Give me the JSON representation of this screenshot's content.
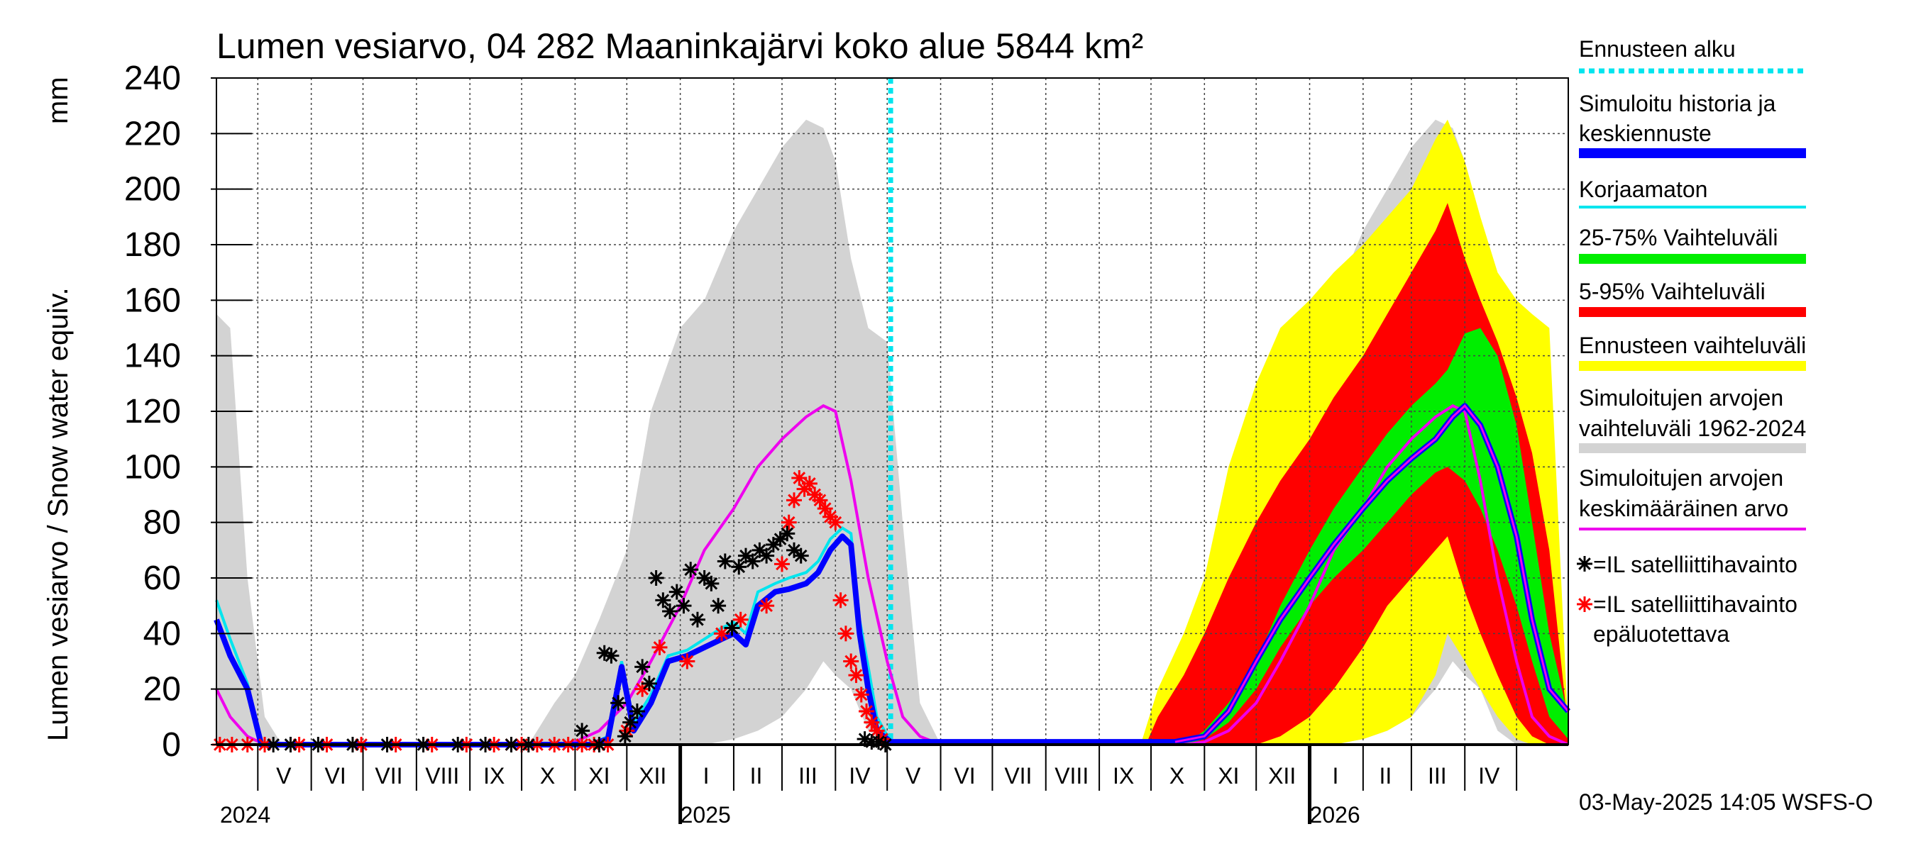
{
  "chart_data": {
    "type": "area",
    "title": "Lumen vesiarvo, 04 282 Maaninkajärvi koko alue 5844 km²",
    "ylabel": "Lumen vesiarvo / Snow water equiv.",
    "yunit": "mm",
    "ylim": [
      0,
      240
    ],
    "yticks": [
      0,
      20,
      40,
      60,
      80,
      100,
      120,
      140,
      160,
      180,
      200,
      220,
      240
    ],
    "xlim": [
      "2024-04-07",
      "2026-05-31"
    ],
    "grid": true,
    "legend_position": "right",
    "month_labels": [
      {
        "label": "V",
        "date": "2024-05-16"
      },
      {
        "label": "VI",
        "date": "2024-06-15"
      },
      {
        "label": "VII",
        "date": "2024-07-16"
      },
      {
        "label": "VIII",
        "date": "2024-08-16"
      },
      {
        "label": "IX",
        "date": "2024-09-15"
      },
      {
        "label": "X",
        "date": "2024-10-16"
      },
      {
        "label": "XI",
        "date": "2024-11-15"
      },
      {
        "label": "XII",
        "date": "2024-12-16"
      },
      {
        "label": "I",
        "date": "2025-01-16"
      },
      {
        "label": "II",
        "date": "2025-02-14"
      },
      {
        "label": "III",
        "date": "2025-03-16"
      },
      {
        "label": "IV",
        "date": "2025-04-15"
      },
      {
        "label": "V",
        "date": "2025-05-16"
      },
      {
        "label": "VI",
        "date": "2025-06-15"
      },
      {
        "label": "VII",
        "date": "2025-07-16"
      },
      {
        "label": "VIII",
        "date": "2025-08-16"
      },
      {
        "label": "IX",
        "date": "2025-09-15"
      },
      {
        "label": "X",
        "date": "2025-10-16"
      },
      {
        "label": "XI",
        "date": "2025-11-15"
      },
      {
        "label": "XII",
        "date": "2025-12-16"
      },
      {
        "label": "I",
        "date": "2026-01-16"
      },
      {
        "label": "II",
        "date": "2026-02-14"
      },
      {
        "label": "III",
        "date": "2026-03-16"
      },
      {
        "label": "IV",
        "date": "2026-04-15"
      }
    ],
    "year_labels": [
      {
        "label": "2024",
        "date": "2024-04-07"
      },
      {
        "label": "2025",
        "date": "2025-01-01"
      },
      {
        "label": "2026",
        "date": "2026-01-01"
      }
    ],
    "forecast_start": "2025-05-03",
    "footer": "03-May-2025 14:05 WSFS-O",
    "colors": {
      "history_range": "#d3d3d3",
      "forecast_range": "#ffff00",
      "p5_95": "#ff0000",
      "p25_75": "#00ee00",
      "simulated": "#0000ff",
      "uncorrected": "#00e5ee",
      "mean": "#ee00ee",
      "forecast_start": "#00e5ee",
      "sat_ok": "#000000",
      "sat_bad": "#ff0000"
    },
    "legend": [
      {
        "label": "Ennusteen alku",
        "symbol": "dashed",
        "color": "#00e5ee"
      },
      {
        "label": "Simuloitu historia ja\nkeskiennuste",
        "symbol": "thick",
        "color": "#0000ff"
      },
      {
        "label": "Korjaamaton",
        "symbol": "line",
        "color": "#00e5ee"
      },
      {
        "label": "25-75% Vaihteluväli",
        "symbol": "thick",
        "color": "#00ee00"
      },
      {
        "label": "5-95% Vaihteluväli",
        "symbol": "thick",
        "color": "#ff0000"
      },
      {
        "label": "Ennusteen vaihteluväli",
        "symbol": "thick",
        "color": "#ffff00"
      },
      {
        "label": "Simuloitujen arvojen\nvaihteluväli 1962-2024",
        "symbol": "thick",
        "color": "#d3d3d3"
      },
      {
        "label": "Simuloitujen arvojen\nkeskimääräinen arvo",
        "symbol": "line",
        "color": "#ee00ee"
      },
      {
        "label": "=IL satelliittihavainto",
        "symbol": "star",
        "color": "#000000"
      },
      {
        "label": "=IL satelliittihavainto\nepäluotettava",
        "symbol": "star",
        "color": "#ff0000"
      }
    ],
    "series": [
      {
        "name": "Simuloitujen arvojen vaihteluväli 1962-2024",
        "kind": "band",
        "x": [
          "2024-04-07",
          "2024-04-15",
          "2024-04-25",
          "2024-05-05",
          "2024-05-15",
          "2024-10-05",
          "2024-10-20",
          "2024-11-01",
          "2024-11-15",
          "2024-12-01",
          "2024-12-15",
          "2025-01-01",
          "2025-01-15",
          "2025-02-01",
          "2025-02-15",
          "2025-03-01",
          "2025-03-15",
          "2025-03-25",
          "2025-04-01",
          "2025-04-10",
          "2025-04-20",
          "2025-05-01",
          "2025-05-10",
          "2025-05-20",
          "2025-06-01",
          "2025-10-01",
          "2025-10-15",
          "2025-11-01",
          "2025-11-15",
          "2025-12-01",
          "2025-12-15",
          "2026-01-01",
          "2026-01-15",
          "2026-02-01",
          "2026-02-15",
          "2026-03-01",
          "2026-03-15",
          "2026-03-25",
          "2026-04-01",
          "2026-04-10",
          "2026-04-20",
          "2026-05-01",
          "2026-05-10",
          "2026-05-20",
          "2026-05-31"
        ],
        "low": [
          0,
          0,
          0,
          0,
          0,
          0,
          0,
          0,
          0,
          0,
          0,
          0,
          0,
          2,
          5,
          10,
          20,
          30,
          25,
          20,
          5,
          0,
          0,
          0,
          0,
          0,
          0,
          0,
          0,
          0,
          0,
          0,
          0,
          2,
          5,
          10,
          20,
          30,
          25,
          20,
          5,
          0,
          0,
          0,
          0
        ],
        "high": [
          155,
          150,
          60,
          10,
          0,
          0,
          15,
          25,
          45,
          70,
          120,
          150,
          160,
          185,
          200,
          215,
          225,
          222,
          210,
          175,
          150,
          145,
          80,
          15,
          0,
          0,
          15,
          25,
          45,
          70,
          120,
          150,
          160,
          185,
          200,
          215,
          225,
          222,
          210,
          175,
          150,
          145,
          80,
          15,
          0
        ]
      },
      {
        "name": "Ennusteen vaihteluväli",
        "kind": "band",
        "x": [
          "2025-09-25",
          "2025-10-05",
          "2025-10-20",
          "2025-11-01",
          "2025-11-15",
          "2025-12-01",
          "2025-12-15",
          "2026-01-01",
          "2026-01-15",
          "2026-02-01",
          "2026-02-15",
          "2026-03-01",
          "2026-03-15",
          "2026-03-22",
          "2026-04-01",
          "2026-04-10",
          "2026-04-20",
          "2026-05-01",
          "2026-05-10",
          "2026-05-20",
          "2026-05-31"
        ],
        "low": [
          0,
          0,
          0,
          0,
          0,
          0,
          0,
          0,
          0,
          2,
          5,
          10,
          25,
          40,
          30,
          20,
          10,
          2,
          0,
          0,
          0
        ],
        "high": [
          0,
          20,
          40,
          60,
          100,
          130,
          150,
          160,
          170,
          180,
          190,
          200,
          218,
          225,
          210,
          190,
          170,
          160,
          155,
          150,
          5
        ]
      },
      {
        "name": "5-95% Vaihteluväli",
        "kind": "band",
        "x": [
          "2025-09-28",
          "2025-10-05",
          "2025-10-20",
          "2025-11-01",
          "2025-11-15",
          "2025-12-01",
          "2025-12-15",
          "2026-01-01",
          "2026-01-15",
          "2026-02-01",
          "2026-02-15",
          "2026-03-01",
          "2026-03-15",
          "2026-03-22",
          "2026-04-01",
          "2026-04-10",
          "2026-04-20",
          "2026-05-01",
          "2026-05-10",
          "2026-05-20",
          "2026-05-31"
        ],
        "low": [
          0,
          0,
          0,
          0,
          0,
          0,
          3,
          10,
          20,
          35,
          50,
          60,
          70,
          75,
          55,
          40,
          25,
          10,
          3,
          0,
          0
        ],
        "high": [
          0,
          10,
          25,
          40,
          60,
          80,
          95,
          110,
          125,
          140,
          155,
          170,
          185,
          195,
          175,
          160,
          145,
          125,
          105,
          70,
          5
        ]
      },
      {
        "name": "25-75% Vaihteluväli",
        "kind": "band",
        "x": [
          "2025-10-20",
          "2025-11-01",
          "2025-11-15",
          "2025-12-01",
          "2025-12-15",
          "2026-01-01",
          "2026-01-15",
          "2026-02-01",
          "2026-02-15",
          "2026-03-01",
          "2026-03-15",
          "2026-03-22",
          "2026-04-01",
          "2026-04-10",
          "2026-04-20",
          "2026-05-01",
          "2026-05-10",
          "2026-05-20",
          "2026-05-31"
        ],
        "low": [
          0,
          2,
          8,
          20,
          35,
          50,
          60,
          70,
          80,
          90,
          98,
          100,
          95,
          85,
          70,
          50,
          30,
          10,
          2
        ],
        "high": [
          0,
          5,
          15,
          30,
          50,
          70,
          85,
          100,
          112,
          122,
          130,
          135,
          148,
          150,
          140,
          115,
          80,
          40,
          10
        ]
      },
      {
        "name": "Simuloitu historia ja keskiennuste",
        "kind": "line",
        "x": [
          "2024-04-07",
          "2024-04-15",
          "2024-04-25",
          "2024-05-03",
          "2024-05-10",
          "2024-11-10",
          "2024-11-20",
          "2024-11-28",
          "2024-12-05",
          "2024-12-15",
          "2024-12-25",
          "2025-01-05",
          "2025-01-15",
          "2025-01-25",
          "2025-02-01",
          "2025-02-08",
          "2025-02-15",
          "2025-02-25",
          "2025-03-05",
          "2025-03-15",
          "2025-03-22",
          "2025-03-29",
          "2025-04-05",
          "2025-04-10",
          "2025-04-15",
          "2025-04-20",
          "2025-04-25",
          "2025-05-03",
          "2025-06-01",
          "2025-10-15",
          "2025-11-01",
          "2025-11-15",
          "2025-12-01",
          "2025-12-15",
          "2026-01-01",
          "2026-01-15",
          "2026-02-01",
          "2026-02-15",
          "2026-03-01",
          "2026-03-15",
          "2026-03-25",
          "2026-04-01",
          "2026-04-10",
          "2026-04-20",
          "2026-05-01",
          "2026-05-10",
          "2026-05-20",
          "2026-05-31"
        ],
        "y": [
          45,
          32,
          20,
          0,
          0,
          0,
          2,
          28,
          5,
          15,
          30,
          32,
          35,
          38,
          40,
          36,
          50,
          55,
          56,
          58,
          62,
          70,
          75,
          72,
          40,
          20,
          5,
          1,
          1,
          1,
          3,
          12,
          30,
          45,
          60,
          72,
          85,
          95,
          103,
          110,
          118,
          122,
          115,
          100,
          75,
          45,
          20,
          12
        ]
      },
      {
        "name": "Korjaamaton",
        "kind": "line",
        "x": [
          "2024-04-07",
          "2024-04-15",
          "2024-04-25",
          "2024-05-03",
          "2024-05-10",
          "2024-11-10",
          "2024-11-20",
          "2024-11-28",
          "2024-12-05",
          "2024-12-15",
          "2024-12-25",
          "2025-01-05",
          "2025-01-15",
          "2025-01-25",
          "2025-02-01",
          "2025-02-08",
          "2025-02-15",
          "2025-02-25",
          "2025-03-05",
          "2025-03-15",
          "2025-03-22",
          "2025-03-29",
          "2025-04-05",
          "2025-04-10",
          "2025-04-15",
          "2025-04-20",
          "2025-04-25",
          "2025-05-03"
        ],
        "y": [
          52,
          38,
          22,
          0,
          0,
          0,
          3,
          30,
          8,
          18,
          32,
          34,
          38,
          42,
          44,
          40,
          55,
          58,
          60,
          62,
          66,
          74,
          78,
          76,
          45,
          28,
          10,
          1
        ]
      },
      {
        "name": "Simuloitujen arvojen keskimääräinen arvo",
        "kind": "line",
        "x": [
          "2024-04-07",
          "2024-04-15",
          "2024-04-25",
          "2024-05-05",
          "2024-10-20",
          "2024-11-01",
          "2024-11-15",
          "2024-12-01",
          "2024-12-15",
          "2025-01-01",
          "2025-01-15",
          "2025-02-01",
          "2025-02-15",
          "2025-03-01",
          "2025-03-15",
          "2025-03-25",
          "2025-04-01",
          "2025-04-10",
          "2025-04-20",
          "2025-05-01",
          "2025-05-10",
          "2025-05-20",
          "2025-06-01",
          "2025-10-20",
          "2025-11-01",
          "2025-11-15",
          "2025-12-01",
          "2025-12-15",
          "2026-01-01",
          "2026-01-15",
          "2026-02-01",
          "2026-02-15",
          "2026-03-01",
          "2026-03-15",
          "2026-03-25",
          "2026-04-01",
          "2026-04-10",
          "2026-04-20",
          "2026-05-01",
          "2026-05-10",
          "2026-05-20",
          "2026-05-31"
        ],
        "y": [
          20,
          10,
          3,
          0,
          0,
          1,
          5,
          15,
          30,
          50,
          70,
          85,
          100,
          110,
          118,
          122,
          120,
          95,
          60,
          30,
          10,
          3,
          0,
          0,
          1,
          5,
          15,
          30,
          50,
          70,
          85,
          100,
          110,
          118,
          122,
          120,
          95,
          60,
          30,
          10,
          3,
          0
        ]
      },
      {
        "name": "=IL satelliittihavainto",
        "kind": "scatter",
        "marker": "*",
        "x": [
          "2024-05-10",
          "2024-05-20",
          "2024-06-05",
          "2024-06-25",
          "2024-07-15",
          "2024-08-05",
          "2024-08-25",
          "2024-09-10",
          "2024-09-25",
          "2024-10-05",
          "2024-11-05",
          "2024-11-15",
          "2024-11-18",
          "2024-11-22",
          "2024-11-26",
          "2024-11-30",
          "2024-12-03",
          "2024-12-07",
          "2024-12-10",
          "2024-12-14",
          "2024-12-18",
          "2024-12-22",
          "2024-12-26",
          "2024-12-30",
          "2025-01-03",
          "2025-01-07",
          "2025-01-11",
          "2025-01-15",
          "2025-01-19",
          "2025-01-23",
          "2025-01-27",
          "2025-01-31",
          "2025-02-04",
          "2025-02-08",
          "2025-02-12",
          "2025-02-16",
          "2025-02-20",
          "2025-02-24",
          "2025-02-28",
          "2025-03-04",
          "2025-03-08",
          "2025-03-12",
          "2025-04-18",
          "2025-04-22",
          "2025-04-26",
          "2025-04-30"
        ],
        "y": [
          0,
          0,
          0,
          0,
          0,
          0,
          0,
          0,
          0,
          0,
          5,
          0,
          33,
          32,
          15,
          3,
          8,
          12,
          28,
          22,
          60,
          52,
          48,
          55,
          50,
          63,
          45,
          60,
          58,
          50,
          66,
          42,
          64,
          68,
          66,
          70,
          68,
          72,
          74,
          76,
          70,
          68,
          2,
          1,
          1,
          0
        ]
      },
      {
        "name": "=IL satelliittihavainto epäluotettava",
        "kind": "scatter",
        "marker": "*",
        "x": [
          "2024-04-09",
          "2024-04-16",
          "2024-04-25",
          "2024-05-05",
          "2024-05-25",
          "2024-06-10",
          "2024-06-30",
          "2024-07-20",
          "2024-08-10",
          "2024-08-30",
          "2024-09-15",
          "2024-09-25",
          "2024-10-01",
          "2024-10-10",
          "2024-10-20",
          "2024-10-28",
          "2024-11-05",
          "2024-11-12",
          "2024-11-20",
          "2024-12-01",
          "2024-12-10",
          "2024-12-20",
          "2025-01-05",
          "2025-01-25",
          "2025-02-05",
          "2025-02-20",
          "2025-03-01",
          "2025-03-05",
          "2025-03-08",
          "2025-03-11",
          "2025-03-14",
          "2025-03-17",
          "2025-03-20",
          "2025-03-23",
          "2025-03-26",
          "2025-03-29",
          "2025-04-01",
          "2025-04-04",
          "2025-04-07",
          "2025-04-10",
          "2025-04-13",
          "2025-04-16",
          "2025-04-19",
          "2025-04-22",
          "2025-04-25",
          "2025-04-28"
        ],
        "y": [
          0,
          0,
          0,
          0,
          0,
          0,
          0,
          0,
          0,
          0,
          0,
          0,
          0,
          0,
          0,
          0,
          0,
          0,
          0,
          5,
          20,
          35,
          30,
          40,
          45,
          50,
          65,
          80,
          88,
          96,
          92,
          94,
          90,
          88,
          85,
          82,
          80,
          52,
          40,
          30,
          25,
          18,
          12,
          8,
          5,
          2
        ]
      }
    ]
  }
}
